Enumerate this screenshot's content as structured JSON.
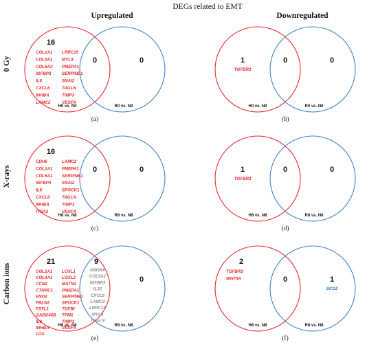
{
  "title": "DEGs related to EMT",
  "columns": {
    "up": "Upregulated",
    "down": "Downregulated"
  },
  "rows": [
    {
      "label": "0 Gy",
      "up": {
        "panel": "(a)",
        "left_label": "H0 vs. N0",
        "right_label": "R0 vs. N0",
        "left_count": "16",
        "overlap_count": "0",
        "right_count": "0",
        "left_genes_col1": [
          "COL1A1",
          "COL5A1",
          "COL6A3",
          "IGFBP3",
          "IL6",
          "CXCL8",
          "INHBA",
          "LAMC2"
        ],
        "left_genes_col2": [
          "LRRC15",
          "MYL9",
          "PMEPA1",
          "SERPINE1",
          "SNAI2",
          "TAGLN",
          "TIMP3",
          "VEGFA"
        ],
        "overlap_genes": [],
        "right_genes": []
      },
      "down": {
        "panel": "(b)",
        "left_label": "H0 vs. N0",
        "right_label": "R0 vs. N0",
        "left_count": "1",
        "overlap_count": "0",
        "right_count": "0",
        "left_genes_col1": [
          "TGFBR3"
        ],
        "left_genes_col2": [],
        "overlap_genes": [],
        "right_genes": []
      }
    },
    {
      "label": "X-rays",
      "up": {
        "panel": "(c)",
        "left_label": "H8 vs. N8",
        "right_label": "R8 vs. N8",
        "left_count": "16",
        "overlap_count": "0",
        "right_count": "0",
        "left_genes_col1": [
          "CDH6",
          "COL1A1",
          "COL5A1",
          "IGFBP3",
          "IL6",
          "CXCL8",
          "INHBA",
          "ITGA2"
        ],
        "left_genes_col2": [
          "LAMC2",
          "PMEPA1",
          "SERPINE1",
          "SNAI2",
          "SPOCK1",
          "TAGLN",
          "TIMP3",
          "VEGFA"
        ],
        "overlap_genes": [],
        "right_genes": []
      },
      "down": {
        "panel": "(d)",
        "left_label": "H8 vs. N8",
        "right_label": "R8 vs. N8",
        "left_count": "1",
        "overlap_count": "0",
        "right_count": "0",
        "left_genes_col1": [
          "TGFBR3"
        ],
        "left_genes_col2": [],
        "overlap_genes": [],
        "right_genes": []
      }
    },
    {
      "label": "Carbon ions",
      "up": {
        "panel": "(e)",
        "left_label": "H8 vs. N8",
        "right_label": "R8 vs. N8",
        "left_count": "21",
        "overlap_count": "9",
        "right_count": "0",
        "left_genes_col1": [
          "COL1A1",
          "COL4A1",
          "CCN2",
          "CTHRC1",
          "ENO2",
          "FBLN2",
          "FSTL1",
          "GADD45B",
          "IL6",
          "INHBA",
          "LOX"
        ],
        "left_genes_col2": [
          "LOXL1",
          "LOXL2",
          "MATN3",
          "PMEPA1",
          "SERPINE1",
          "SPOCK1",
          "TGFBI",
          "TPM1",
          "TIMP3",
          "VEGFA"
        ],
        "overlap_genes": [
          "ABI3BP",
          "COL5A1",
          "IGFBP3",
          "IL32",
          "CXCL8",
          "LAMC2",
          "LRRC15",
          "MYL9",
          "TAGLN"
        ],
        "right_genes": []
      },
      "down": {
        "panel": "(f)",
        "left_label": "H8 vs. N8",
        "right_label": "R8 vs. N8",
        "left_count": "2",
        "overlap_count": "0",
        "right_count": "1",
        "left_genes_col1": [
          "TGFBR3",
          "WNT5A"
        ],
        "left_genes_col2": [],
        "overlap_genes": [],
        "right_genes": [
          "SCG2"
        ]
      }
    }
  ],
  "colors": {
    "left_circle": "#e8262b",
    "right_circle": "#3f7fc4",
    "left_genes": "#e8262b",
    "overlap_genes": "#8c8c8c",
    "right_genes": "#2f6fb5",
    "text": "#111111"
  }
}
